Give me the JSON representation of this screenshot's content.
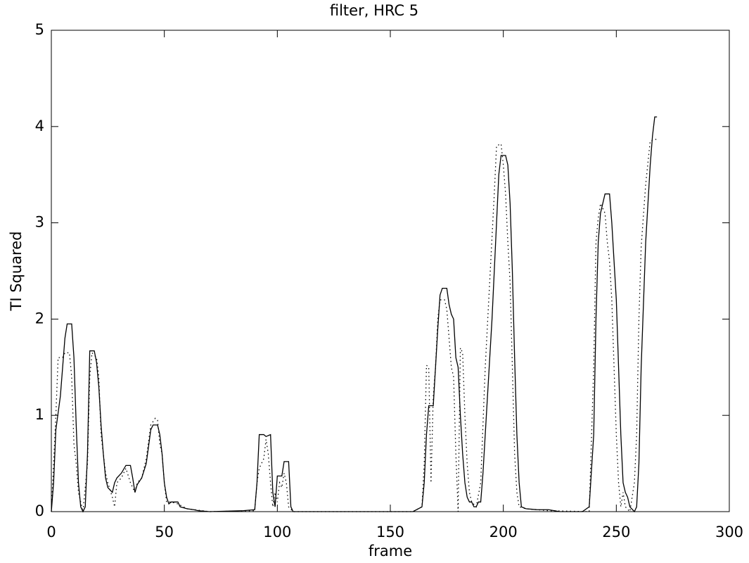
{
  "chart_data": {
    "type": "line",
    "title": "filter, HRC 5",
    "x_label": "frame",
    "y_label": "TI Squared",
    "xlim": [
      0,
      300
    ],
    "xticks": [
      0,
      50,
      100,
      150,
      200,
      250,
      300
    ],
    "ylim": [
      0,
      5
    ],
    "yticks": [
      0,
      1,
      2,
      3,
      4,
      5
    ],
    "series": [
      {
        "color": "#000000",
        "style": "solid",
        "x": [
          0,
          1,
          2,
          4,
          6,
          7,
          9,
          10,
          11,
          12,
          13,
          14,
          15,
          16,
          17,
          19,
          20,
          21,
          22,
          23,
          24,
          25,
          27,
          28,
          29,
          31,
          33,
          35,
          36,
          37,
          38,
          40,
          42,
          44,
          45,
          47,
          48,
          49,
          50,
          51,
          52,
          53,
          56,
          57,
          60,
          63,
          65,
          70,
          85,
          90,
          91,
          92,
          94,
          95,
          97,
          98,
          99,
          100,
          102,
          103,
          105,
          106,
          107,
          160,
          164,
          165,
          166,
          167,
          169,
          170,
          171,
          172,
          173,
          175,
          176,
          177,
          178,
          179,
          180,
          181,
          182,
          183,
          184,
          185,
          186,
          187,
          188,
          189,
          190,
          191,
          193,
          195,
          197,
          198,
          199,
          201,
          202,
          203,
          204,
          205,
          206,
          207,
          208,
          210,
          215,
          220,
          225,
          235,
          238,
          240,
          241,
          242,
          243,
          245,
          247,
          248,
          249,
          250,
          251,
          252,
          253,
          254,
          255,
          256,
          258,
          259,
          260,
          261,
          263,
          265,
          266,
          267,
          268
        ],
        "values": [
          0,
          0.3,
          0.85,
          1.2,
          1.8,
          1.95,
          1.95,
          1.6,
          0.9,
          0.3,
          0.05,
          0,
          0.05,
          0.6,
          1.67,
          1.67,
          1.55,
          1.3,
          0.9,
          0.6,
          0.35,
          0.25,
          0.2,
          0.3,
          0.35,
          0.4,
          0.48,
          0.48,
          0.35,
          0.2,
          0.28,
          0.35,
          0.5,
          0.85,
          0.9,
          0.9,
          0.8,
          0.6,
          0.3,
          0.15,
          0.08,
          0.1,
          0.1,
          0.05,
          0.03,
          0.02,
          0.01,
          0,
          0.01,
          0.02,
          0.3,
          0.8,
          0.8,
          0.78,
          0.8,
          0.2,
          0.05,
          0.37,
          0.37,
          0.52,
          0.52,
          0.05,
          0,
          0,
          0.05,
          0.3,
          0.8,
          1.1,
          1.1,
          1.5,
          1.9,
          2.25,
          2.32,
          2.32,
          2.15,
          2.05,
          2.0,
          1.6,
          1.5,
          1.0,
          0.6,
          0.3,
          0.15,
          0.1,
          0.1,
          0.05,
          0.05,
          0.1,
          0.1,
          0.4,
          1.2,
          2.0,
          3.0,
          3.5,
          3.7,
          3.7,
          3.6,
          3.2,
          2.5,
          1.6,
          0.8,
          0.3,
          0.05,
          0.03,
          0.02,
          0.02,
          0,
          0,
          0.05,
          0.8,
          2.0,
          2.8,
          3.1,
          3.3,
          3.3,
          3.0,
          2.6,
          2.2,
          1.5,
          0.8,
          0.3,
          0.2,
          0.15,
          0.05,
          0,
          0.05,
          0.5,
          1.5,
          2.8,
          3.6,
          3.9,
          4.1,
          4.1
        ]
      },
      {
        "color": "#000000",
        "style": "dotted",
        "x": [
          0,
          1,
          2,
          3,
          5,
          6,
          8,
          9,
          10,
          11,
          12,
          14,
          16,
          17,
          18,
          20,
          21,
          22,
          23,
          24,
          25,
          27,
          28,
          29,
          31,
          33,
          35,
          36,
          37,
          38,
          40,
          42,
          44,
          46,
          47,
          48,
          49,
          50,
          51,
          53,
          56,
          60,
          70,
          90,
          91,
          92,
          93,
          94,
          95,
          96,
          97,
          98,
          99,
          100,
          101,
          102,
          103,
          104,
          105,
          107,
          160,
          164,
          165,
          166,
          167,
          168,
          169,
          170,
          171,
          172,
          174,
          175,
          176,
          177,
          178,
          179,
          180,
          181,
          182,
          183,
          184,
          185,
          186,
          188,
          190,
          192,
          194,
          196,
          197,
          199,
          200,
          201,
          202,
          203,
          204,
          205,
          206,
          207,
          210,
          220,
          238,
          240,
          241,
          242,
          243,
          245,
          246,
          247,
          248,
          249,
          250,
          251,
          252,
          253,
          254,
          256,
          258,
          259,
          260,
          261,
          263,
          265,
          268
        ],
        "values": [
          0,
          0.5,
          1.0,
          1.6,
          1.6,
          1.65,
          1.65,
          1.4,
          0.7,
          0.5,
          0.2,
          0,
          0.5,
          1.4,
          1.65,
          1.6,
          1.4,
          0.8,
          0.6,
          0.4,
          0.3,
          0.15,
          0.05,
          0.3,
          0.35,
          0.45,
          0.3,
          0.25,
          0.2,
          0.3,
          0.35,
          0.55,
          0.9,
          0.97,
          0.95,
          0.7,
          0.6,
          0.3,
          0.1,
          0.1,
          0.08,
          0.03,
          0,
          0.01,
          0.3,
          0.45,
          0.5,
          0.55,
          0.75,
          0.6,
          0.3,
          0.05,
          0.2,
          0.1,
          0.3,
          0.25,
          0.4,
          0.3,
          0.05,
          0,
          0,
          0.05,
          0.5,
          1.52,
          1.5,
          0.3,
          1.2,
          1.5,
          2.0,
          2.2,
          2.2,
          2.1,
          1.8,
          1.5,
          1.4,
          0.6,
          0,
          1.7,
          1.65,
          1.0,
          0.5,
          0.2,
          0.1,
          0.05,
          0.3,
          1.5,
          2.4,
          3.3,
          3.8,
          3.82,
          3.6,
          3.3,
          2.8,
          2.38,
          1.5,
          0.6,
          0.2,
          0.05,
          0.03,
          0.01,
          0,
          1.5,
          2.8,
          3.05,
          3.2,
          3.1,
          2.8,
          2.6,
          2.2,
          1.5,
          0.8,
          0.3,
          0.05,
          0.2,
          0.05,
          0,
          0.3,
          0.8,
          2.0,
          2.75,
          3.4,
          3.85,
          3.87
        ]
      }
    ]
  }
}
